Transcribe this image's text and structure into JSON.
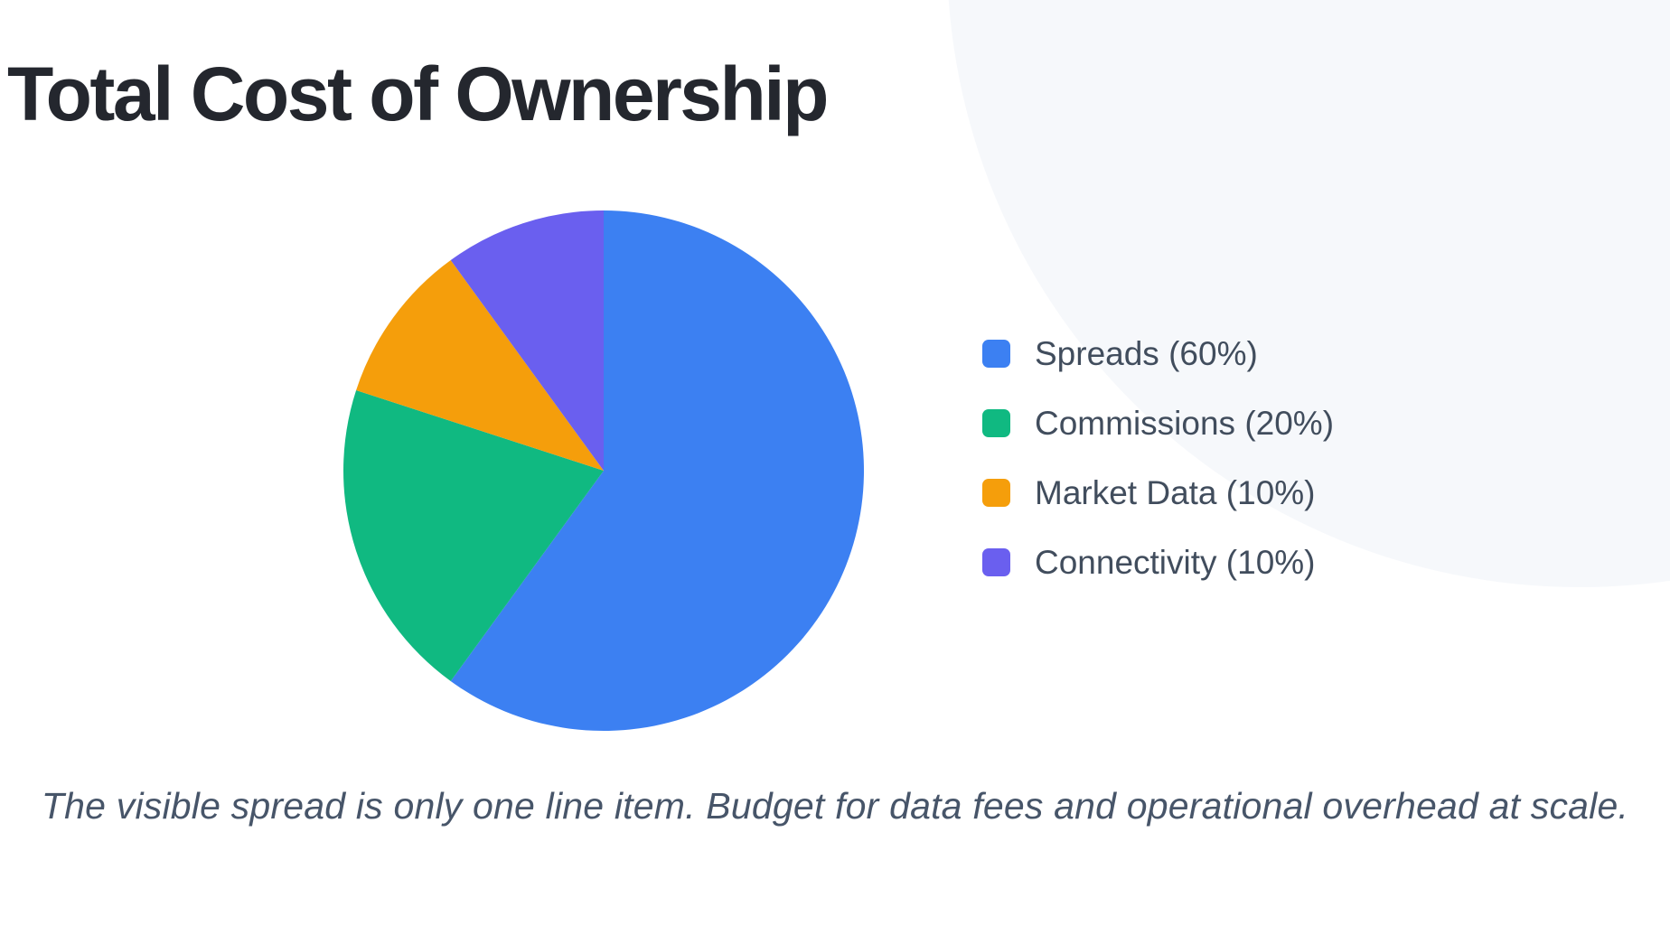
{
  "page": {
    "title": "Total Cost of Ownership",
    "caption": "The visible spread is only one line item. Budget for data fees and operational overhead at scale."
  },
  "chart_data": {
    "type": "pie",
    "title": "Total Cost of Ownership",
    "start_angle_deg": 0,
    "direction": "clockwise",
    "legend_position": "right",
    "slices": [
      {
        "label": "Spreads",
        "value": 60,
        "percent_text": "60%",
        "legend_label": "Spreads (60%)",
        "color": "#3c80f2"
      },
      {
        "label": "Commissions",
        "value": 20,
        "percent_text": "20%",
        "legend_label": "Commissions (20%)",
        "color": "#10b981"
      },
      {
        "label": "Market Data",
        "value": 10,
        "percent_text": "10%",
        "legend_label": "Market Data (10%)",
        "color": "#f59e0b"
      },
      {
        "label": "Connectivity",
        "value": 10,
        "percent_text": "10%",
        "legend_label": "Connectivity (10%)",
        "color": "#6a5fef"
      }
    ],
    "caption": "The visible spread is only one line item. Budget for data fees and operational overhead at scale."
  }
}
